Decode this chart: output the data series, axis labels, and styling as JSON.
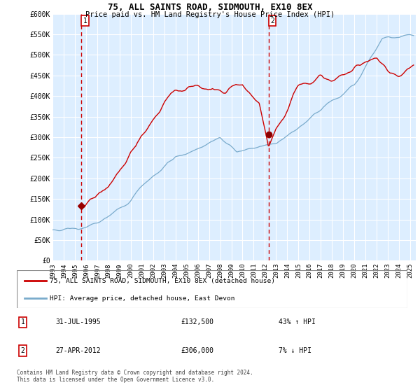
{
  "title": "75, ALL SAINTS ROAD, SIDMOUTH, EX10 8EX",
  "subtitle": "Price paid vs. HM Land Registry's House Price Index (HPI)",
  "ylabel_ticks": [
    "£0",
    "£50K",
    "£100K",
    "£150K",
    "£200K",
    "£250K",
    "£300K",
    "£350K",
    "£400K",
    "£450K",
    "£500K",
    "£550K",
    "£600K"
  ],
  "ylim": [
    0,
    600000
  ],
  "ytick_vals": [
    0,
    50000,
    100000,
    150000,
    200000,
    250000,
    300000,
    350000,
    400000,
    450000,
    500000,
    550000,
    600000
  ],
  "xlim_start": 1993.0,
  "xlim_end": 2025.5,
  "marker1_x": 1995.58,
  "marker1_y": 132500,
  "marker2_x": 2012.33,
  "marker2_y": 306000,
  "legend_line1": "75, ALL SAINTS ROAD, SIDMOUTH, EX10 8EX (detached house)",
  "legend_line2": "HPI: Average price, detached house, East Devon",
  "annotation1_date": "31-JUL-1995",
  "annotation1_price": "£132,500",
  "annotation1_hpi": "43% ↑ HPI",
  "annotation2_date": "27-APR-2012",
  "annotation2_price": "£306,000",
  "annotation2_hpi": "7% ↓ HPI",
  "footer": "Contains HM Land Registry data © Crown copyright and database right 2024.\nThis data is licensed under the Open Government Licence v3.0.",
  "line_color_red": "#cc0000",
  "line_color_blue": "#7aabcc",
  "background_color": "#ddeeff",
  "grid_color": "#ffffff",
  "marker_color": "#990000",
  "dashed_color": "#cc0000"
}
